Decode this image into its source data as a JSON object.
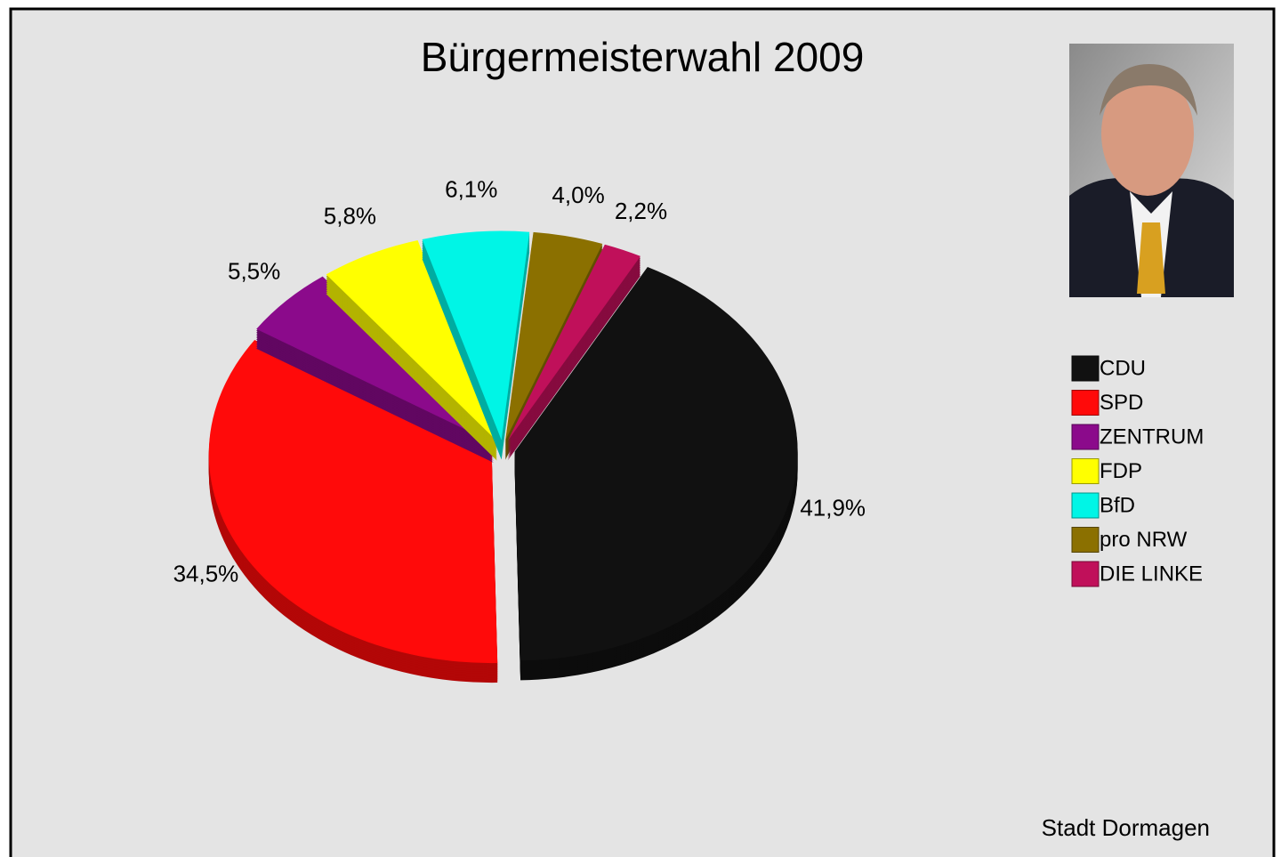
{
  "chart_data": {
    "type": "pie",
    "title": "Bürgermeisterwahl 2009",
    "categories": [
      "CDU",
      "SPD",
      "ZENTRUM",
      "FDP",
      "BfD",
      "pro NRW",
      "DIE LINKE"
    ],
    "values": [
      41.9,
      34.5,
      5.5,
      5.8,
      6.1,
      4.0,
      2.2
    ],
    "value_labels": [
      "41,9%",
      "34,5%",
      "5,5%",
      "5,8%",
      "6,1%",
      "4,0%",
      "2,2%"
    ],
    "colors": [
      "#111111",
      "#ff0a0a",
      "#8b0a8b",
      "#ffff00",
      "#00f5e6",
      "#8b7000",
      "#c0105a"
    ],
    "source": "Stadt Dormagen"
  }
}
